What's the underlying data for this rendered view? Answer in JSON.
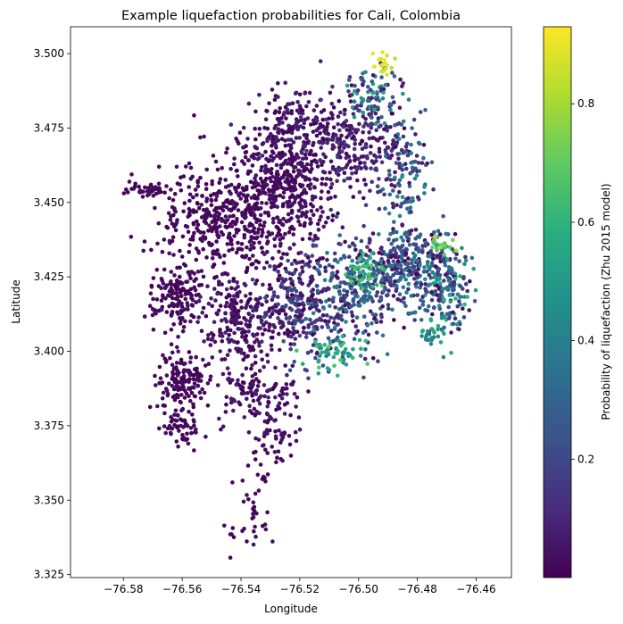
{
  "chart_data": {
    "type": "scatter",
    "title": "Example liquefaction probabilities for Cali, Colombia",
    "xlabel": "Longitude",
    "ylabel": "Latitude",
    "xlim": [
      -76.598,
      -76.448
    ],
    "ylim": [
      3.324,
      3.509
    ],
    "xticks": [
      -76.58,
      -76.56,
      -76.54,
      -76.52,
      -76.5,
      -76.48,
      -76.46
    ],
    "xtick_labels": [
      "−76.58",
      "−76.56",
      "−76.54",
      "−76.52",
      "−76.50",
      "−76.48",
      "−76.46"
    ],
    "yticks": [
      3.325,
      3.35,
      3.375,
      3.4,
      3.425,
      3.45,
      3.475,
      3.5
    ],
    "ytick_labels": [
      "3.325",
      "3.350",
      "3.375",
      "3.400",
      "3.425",
      "3.450",
      "3.475",
      "3.500"
    ],
    "grid": false,
    "colorbar": {
      "label": "Probability of liquefaction (Zhu 2015 model)",
      "colormap": "viridis",
      "range": [
        0.0,
        0.93
      ],
      "ticks": [
        0.2,
        0.4,
        0.6,
        0.8
      ],
      "tick_labels": [
        "0.2",
        "0.4",
        "0.6",
        "0.8"
      ]
    },
    "point_regions": [
      {
        "lon": -76.545,
        "lat": 3.445,
        "spread_lon": 0.016,
        "spread_lat": 0.014,
        "n": 420,
        "p": 0.02,
        "p_jitter": 0.02
      },
      {
        "lon": -76.525,
        "lat": 3.455,
        "spread_lon": 0.012,
        "spread_lat": 0.014,
        "n": 380,
        "p": 0.03,
        "p_jitter": 0.03
      },
      {
        "lon": -76.52,
        "lat": 3.475,
        "spread_lon": 0.012,
        "spread_lat": 0.01,
        "n": 200,
        "p": 0.05,
        "p_jitter": 0.05
      },
      {
        "lon": -76.5,
        "lat": 3.47,
        "spread_lon": 0.012,
        "spread_lat": 0.012,
        "n": 220,
        "p": 0.08,
        "p_jitter": 0.08
      },
      {
        "lon": -76.495,
        "lat": 3.485,
        "spread_lon": 0.006,
        "spread_lat": 0.008,
        "n": 80,
        "p": 0.3,
        "p_jitter": 0.25
      },
      {
        "lon": -76.485,
        "lat": 3.46,
        "spread_lon": 0.006,
        "spread_lat": 0.012,
        "n": 110,
        "p": 0.25,
        "p_jitter": 0.2
      },
      {
        "lon": -76.562,
        "lat": 3.418,
        "spread_lon": 0.006,
        "spread_lat": 0.008,
        "n": 150,
        "p": 0.02,
        "p_jitter": 0.02
      },
      {
        "lon": -76.56,
        "lat": 3.39,
        "spread_lon": 0.007,
        "spread_lat": 0.007,
        "n": 150,
        "p": 0.02,
        "p_jitter": 0.02
      },
      {
        "lon": -76.56,
        "lat": 3.374,
        "spread_lon": 0.005,
        "spread_lat": 0.004,
        "n": 50,
        "p": 0.02,
        "p_jitter": 0.02
      },
      {
        "lon": -76.572,
        "lat": 3.454,
        "spread_lon": 0.006,
        "spread_lat": 0.002,
        "n": 40,
        "p": 0.02,
        "p_jitter": 0.02
      },
      {
        "lon": -76.54,
        "lat": 3.41,
        "spread_lon": 0.012,
        "spread_lat": 0.012,
        "n": 260,
        "p": 0.04,
        "p_jitter": 0.05
      },
      {
        "lon": -76.52,
        "lat": 3.415,
        "spread_lon": 0.008,
        "spread_lat": 0.014,
        "n": 230,
        "p": 0.12,
        "p_jitter": 0.12
      },
      {
        "lon": -76.5,
        "lat": 3.42,
        "spread_lon": 0.012,
        "spread_lat": 0.012,
        "n": 320,
        "p": 0.22,
        "p_jitter": 0.2
      },
      {
        "lon": -76.482,
        "lat": 3.43,
        "spread_lon": 0.01,
        "spread_lat": 0.01,
        "n": 250,
        "p": 0.22,
        "p_jitter": 0.22
      },
      {
        "lon": -76.47,
        "lat": 3.42,
        "spread_lon": 0.006,
        "spread_lat": 0.01,
        "n": 160,
        "p": 0.3,
        "p_jitter": 0.3
      },
      {
        "lon": -76.508,
        "lat": 3.4,
        "spread_lon": 0.006,
        "spread_lat": 0.004,
        "n": 60,
        "p": 0.55,
        "p_jitter": 0.15
      },
      {
        "lon": -76.498,
        "lat": 3.426,
        "spread_lon": 0.004,
        "spread_lat": 0.004,
        "n": 40,
        "p": 0.6,
        "p_jitter": 0.12
      },
      {
        "lon": -76.535,
        "lat": 3.385,
        "spread_lon": 0.01,
        "spread_lat": 0.006,
        "n": 120,
        "p": 0.04,
        "p_jitter": 0.05
      },
      {
        "lon": -76.528,
        "lat": 3.37,
        "spread_lon": 0.006,
        "spread_lat": 0.006,
        "n": 40,
        "p": 0.03,
        "p_jitter": 0.03
      },
      {
        "lon": -76.535,
        "lat": 3.355,
        "spread_lon": 0.005,
        "spread_lat": 0.012,
        "n": 30,
        "p": 0.02,
        "p_jitter": 0.02
      },
      {
        "lon": -76.538,
        "lat": 3.338,
        "spread_lon": 0.006,
        "spread_lat": 0.004,
        "n": 15,
        "p": 0.02,
        "p_jitter": 0.02
      },
      {
        "lon": -76.492,
        "lat": 3.497,
        "spread_lon": 0.003,
        "spread_lat": 0.003,
        "n": 20,
        "p": 0.88,
        "p_jitter": 0.05
      },
      {
        "lon": -76.472,
        "lat": 3.436,
        "spread_lon": 0.004,
        "spread_lat": 0.002,
        "n": 25,
        "p": 0.7,
        "p_jitter": 0.12
      },
      {
        "lon": -76.476,
        "lat": 3.405,
        "spread_lon": 0.003,
        "spread_lat": 0.004,
        "n": 20,
        "p": 0.5,
        "p_jitter": 0.15
      }
    ]
  }
}
